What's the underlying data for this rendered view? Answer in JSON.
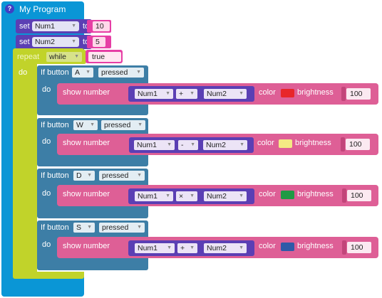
{
  "program": {
    "title": "My Program",
    "help_glyph": "?"
  },
  "set_blocks": [
    {
      "keyword": "set",
      "variable": "Num1",
      "to": "to",
      "value": "10"
    },
    {
      "keyword": "set",
      "variable": "Num2",
      "to": "to",
      "value": "5"
    }
  ],
  "repeat": {
    "keyword": "repeat",
    "mode": "while",
    "condition": "true",
    "do": "do"
  },
  "if_blocks": [
    {
      "keyword": "If button",
      "button": "A",
      "state": "pressed",
      "do": "do",
      "action": "show number",
      "left": "Num1",
      "op": "+",
      "right": "Num2",
      "color_label": "color",
      "color": "#e8262a",
      "brightness_label": "brightness",
      "brightness": "100"
    },
    {
      "keyword": "If button",
      "button": "W",
      "state": "pressed",
      "do": "do",
      "action": "show number",
      "left": "Num1",
      "op": "-",
      "right": "Num2",
      "color_label": "color",
      "color": "#f4ea84",
      "brightness_label": "brightness",
      "brightness": "100"
    },
    {
      "keyword": "If button",
      "button": "D",
      "state": "pressed",
      "do": "do",
      "action": "show number",
      "left": "Num1",
      "op": "×",
      "right": "Num2",
      "color_label": "color",
      "color": "#1f9a44",
      "brightness_label": "brightness",
      "brightness": "100"
    },
    {
      "keyword": "If button",
      "button": "S",
      "state": "pressed",
      "do": "do",
      "action": "show number",
      "left": "Num1",
      "op": "+",
      "right": "Num2",
      "color_label": "color",
      "color": "#2f5aa8",
      "brightness_label": "brightness",
      "brightness": "100"
    }
  ],
  "colors": {
    "program": "#0a96d6",
    "set": "#5b3fb4",
    "value": "#e63ea5",
    "loop": "#c1d32a",
    "if": "#3d7ea6",
    "show": "#de5f96"
  },
  "icons": {
    "dropdown": "caret-down-icon",
    "help": "question-circle-icon"
  }
}
